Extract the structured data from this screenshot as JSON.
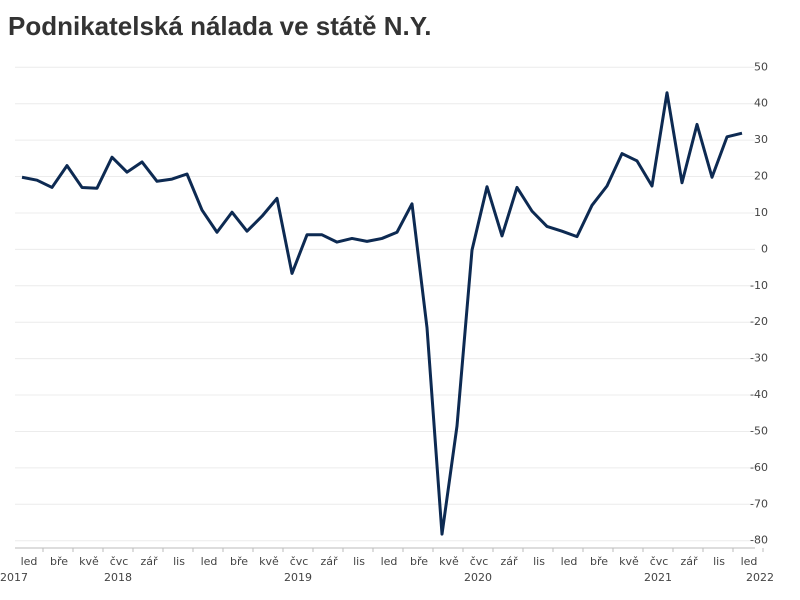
{
  "chart_data": {
    "type": "line",
    "title": "Podnikatelská nálada ve státě N.Y.",
    "categories": [
      null,
      "led",
      null,
      "bře",
      null,
      "kvě",
      null,
      "čvc",
      null,
      "zář",
      null,
      "lis",
      null,
      "led",
      null,
      "bře",
      null,
      "kvě",
      null,
      "čvc",
      null,
      "zář",
      null,
      "lis",
      null,
      "led",
      null,
      "bře",
      null,
      "kvě",
      null,
      "čvc",
      null,
      "zář",
      null,
      "lis",
      null,
      "led",
      null,
      "bře",
      null,
      "kvě",
      null,
      "čvc",
      null,
      "zář",
      null,
      "lis",
      null,
      "led"
    ],
    "years": [
      "2017",
      "2018",
      "2019",
      "2020",
      "2021",
      "2022"
    ],
    "series": [
      {
        "color": "#0d2a52",
        "values": [
          19.8,
          19,
          17,
          23,
          17,
          16.8,
          25.3,
          21.2,
          24,
          18.7,
          19.3,
          20.7,
          10.8,
          4.7,
          10.2,
          5,
          9.1,
          14,
          -6.6,
          4,
          4,
          2,
          3,
          2.2,
          3,
          4.7,
          12.5,
          -21.5,
          -78.2,
          -48.5,
          -0.2,
          17.2,
          3.7,
          17,
          10.5,
          6.3,
          5,
          3.5,
          12.1,
          17.4,
          26.3,
          24.3,
          17.4,
          43,
          18.3,
          34.3,
          19.8,
          30.9,
          31.9,
          null
        ]
      }
    ],
    "ylim": [
      -82,
      52
    ],
    "yticks": [
      50,
      40,
      30,
      20,
      10,
      0,
      -10,
      -20,
      -30,
      -40,
      -50,
      -60,
      -70,
      -80
    ],
    "grid": true
  }
}
